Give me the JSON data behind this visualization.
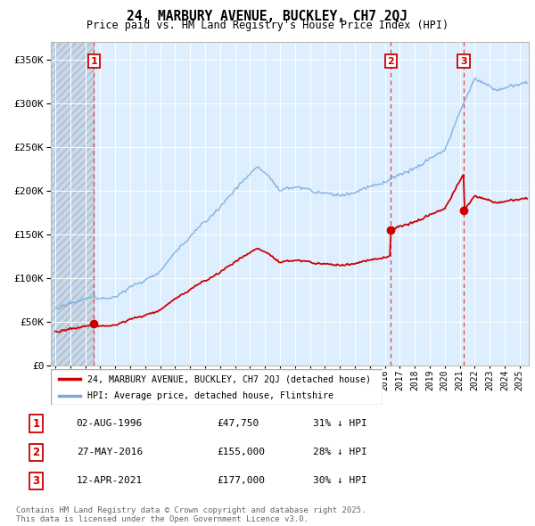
{
  "title": "24, MARBURY AVENUE, BUCKLEY, CH7 2QJ",
  "subtitle": "Price paid vs. HM Land Registry's House Price Index (HPI)",
  "legend_line1": "24, MARBURY AVENUE, BUCKLEY, CH7 2QJ (detached house)",
  "legend_line2": "HPI: Average price, detached house, Flintshire",
  "footer": "Contains HM Land Registry data © Crown copyright and database right 2025.\nThis data is licensed under the Open Government Licence v3.0.",
  "transactions": [
    {
      "num": 1,
      "date": "02-AUG-1996",
      "price": 47750,
      "pct": "31%",
      "year": 1996.58
    },
    {
      "num": 2,
      "date": "27-MAY-2016",
      "price": 155000,
      "pct": "28%",
      "year": 2016.41
    },
    {
      "num": 3,
      "date": "12-APR-2021",
      "price": 177000,
      "pct": "30%",
      "year": 2021.27
    }
  ],
  "price_color": "#cc0000",
  "hpi_color": "#7aaadd",
  "vline_color": "#dd4444",
  "bg_color": "#ddeeff",
  "hatch_bg": "#c8d8e8",
  "ylim": [
    0,
    370000
  ],
  "yticks": [
    0,
    50000,
    100000,
    150000,
    200000,
    250000,
    300000,
    350000
  ],
  "ytick_labels": [
    "£0",
    "£50K",
    "£100K",
    "£150K",
    "£200K",
    "£250K",
    "£300K",
    "£350K"
  ],
  "xstart": 1993.7,
  "xend": 2025.6
}
